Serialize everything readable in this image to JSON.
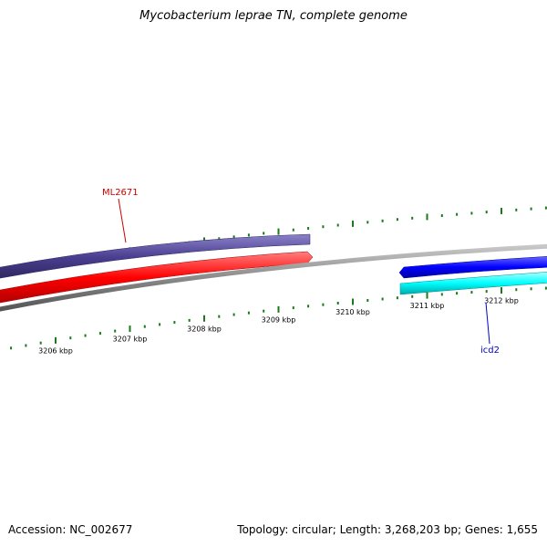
{
  "title": "Mycobacterium leprae TN, complete genome",
  "footer": {
    "accession_label": "Accession:",
    "accession": "NC_002677",
    "topology_label": "Topology:",
    "topology": "circular",
    "length_label": "Length:",
    "length": "3,268,203 bp",
    "genes_label": "Genes:",
    "genes": "1,655"
  },
  "scale_unit": "kbp",
  "ticks": [
    {
      "label": "3206 kbp",
      "value": 3206
    },
    {
      "label": "3207 kbp",
      "value": 3207
    },
    {
      "label": "3208 kbp",
      "value": 3208
    },
    {
      "label": "3209 kbp",
      "value": 3209
    },
    {
      "label": "3210 kbp",
      "value": 3210
    },
    {
      "label": "3211 kbp",
      "value": 3211
    },
    {
      "label": "3212 kbp",
      "value": 3212
    }
  ],
  "genes": [
    {
      "name": "ML2671",
      "color": "#cc0000",
      "track": "forward"
    },
    {
      "name": "icd2",
      "color": "#0000cc",
      "track": "reverse"
    }
  ],
  "colors": {
    "backbone": "#888888",
    "ticks": "#1a7a1a",
    "forward_feature": "#4b3f91",
    "forward_cds": "#ff0000",
    "reverse_cds": "#0000ff",
    "reverse_feature": "#00ffff"
  }
}
